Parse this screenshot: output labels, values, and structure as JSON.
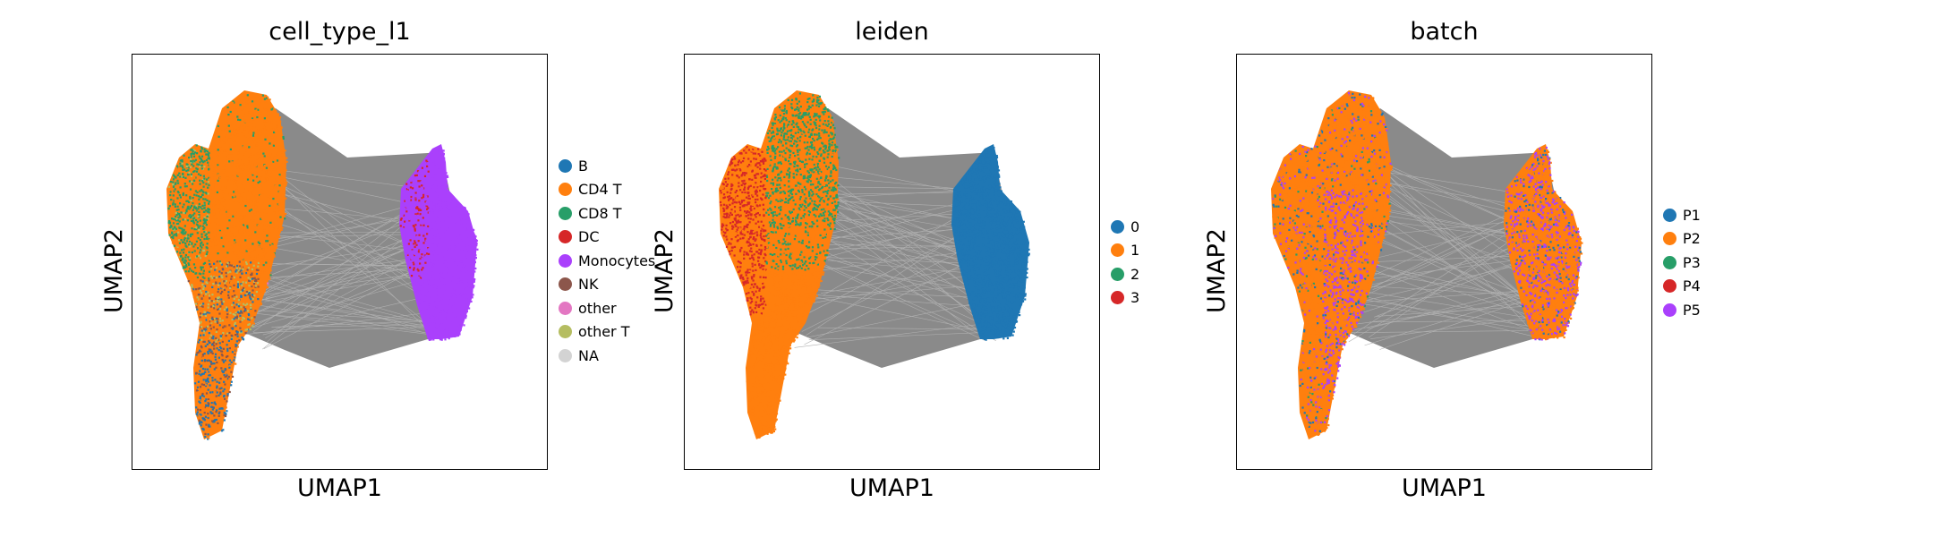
{
  "chart_data": [
    {
      "type": "scatter",
      "title": "cell_type_l1",
      "xlabel": "UMAP1",
      "ylabel": "UMAP2",
      "grid": false,
      "legend_position": "right",
      "legend": [
        {
          "label": "B",
          "color": "#1f77b4"
        },
        {
          "label": "CD4 T",
          "color": "#ff7f0e"
        },
        {
          "label": "CD8 T",
          "color": "#279e68"
        },
        {
          "label": "DC",
          "color": "#d62728"
        },
        {
          "label": "Monocytes",
          "color": "#aa40fc"
        },
        {
          "label": "NK",
          "color": "#8c564b"
        },
        {
          "label": "other",
          "color": "#e377c2"
        },
        {
          "label": "other T",
          "color": "#b5bd61"
        },
        {
          "label": "NA",
          "color": "#d3d3d3"
        }
      ]
    },
    {
      "type": "scatter",
      "title": "leiden",
      "xlabel": "UMAP1",
      "ylabel": "UMAP2",
      "grid": false,
      "legend_position": "right",
      "legend": [
        {
          "label": "0",
          "color": "#1f77b4"
        },
        {
          "label": "1",
          "color": "#ff7f0e"
        },
        {
          "label": "2",
          "color": "#279e68"
        },
        {
          "label": "3",
          "color": "#d62728"
        }
      ]
    },
    {
      "type": "scatter",
      "title": "batch",
      "xlabel": "UMAP1",
      "ylabel": "UMAP2",
      "grid": false,
      "legend_position": "right",
      "legend": [
        {
          "label": "P1",
          "color": "#1f77b4"
        },
        {
          "label": "P2",
          "color": "#ff7f0e"
        },
        {
          "label": "P3",
          "color": "#279e68"
        },
        {
          "label": "P4",
          "color": "#d62728"
        },
        {
          "label": "P5",
          "color": "#aa40fc"
        }
      ]
    }
  ]
}
